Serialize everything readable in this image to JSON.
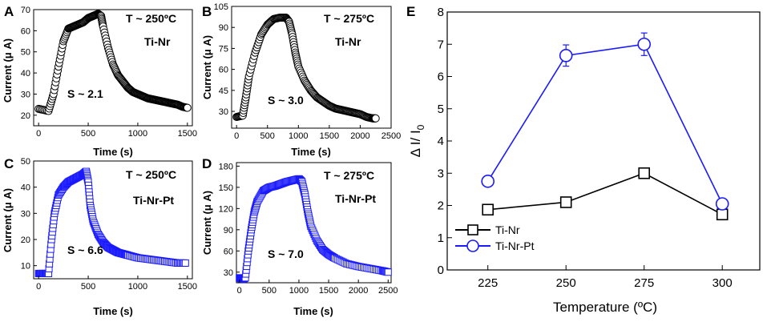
{
  "chart_data": [
    {
      "id": "A",
      "type": "scatter",
      "panel_label": "A",
      "xlabel": "Time (s)",
      "ylabel": "Current (μ A)",
      "xlim": [
        -50,
        1550
      ],
      "ylim": [
        15,
        70
      ],
      "xticks": [
        "0",
        "500",
        "1000",
        "1500"
      ],
      "xtick_values": [
        0,
        500,
        1000,
        1500
      ],
      "yticks": [
        "20",
        "30",
        "40",
        "50",
        "60",
        "70"
      ],
      "ytick_values": [
        20,
        30,
        40,
        50,
        60,
        70
      ],
      "annotations": {
        "temperature": "T ~ 250ºC",
        "sample": "Ti-Nr",
        "sensitivity": "S ~ 2.1"
      },
      "marker": "circle",
      "color": "#000000",
      "x": [
        0,
        100,
        150,
        200,
        250,
        300,
        350,
        400,
        450,
        500,
        550,
        600,
        630,
        650,
        700,
        750,
        800,
        850,
        900,
        950,
        1000,
        1050,
        1100,
        1150,
        1200,
        1250,
        1300,
        1350,
        1400,
        1450,
        1500
      ],
      "y": [
        23,
        22,
        30,
        43,
        55,
        61,
        62,
        63,
        64,
        66,
        67,
        68,
        67,
        62,
        52,
        44,
        39,
        36,
        33,
        31,
        30,
        29,
        28,
        27.5,
        27,
        26.5,
        26,
        25.5,
        25,
        24,
        23.5
      ]
    },
    {
      "id": "B",
      "type": "scatter",
      "panel_label": "B",
      "xlabel": "Time (s)",
      "ylabel": "Current (μ A)",
      "xlim": [
        -80,
        2500
      ],
      "ylim": [
        18,
        105
      ],
      "xticks": [
        "0",
        "500",
        "1000",
        "1500",
        "2000",
        "2500"
      ],
      "xtick_values": [
        0,
        500,
        1000,
        1500,
        2000,
        2500
      ],
      "yticks": [
        "30",
        "45",
        "60",
        "75",
        "90",
        "105"
      ],
      "ytick_values": [
        30,
        45,
        60,
        75,
        90,
        105
      ],
      "annotations": {
        "temperature": "T ~ 275ºC",
        "sample": "Ti-Nr",
        "sensitivity": "S ~ 3.0"
      },
      "marker": "circle",
      "color": "#000000",
      "x": [
        0,
        100,
        150,
        200,
        300,
        400,
        500,
        600,
        700,
        800,
        850,
        900,
        950,
        1000,
        1100,
        1200,
        1300,
        1400,
        1500,
        1600,
        1700,
        1800,
        1900,
        2000,
        2100,
        2200,
        2250
      ],
      "y": [
        26,
        27,
        40,
        55,
        72,
        85,
        92,
        96,
        97,
        97,
        94,
        85,
        72,
        62,
        52,
        45,
        40,
        37,
        34,
        32,
        31,
        30,
        29,
        28,
        26,
        25,
        25
      ]
    },
    {
      "id": "C",
      "type": "scatter",
      "panel_label": "C",
      "xlabel": "Time (s)",
      "ylabel": "Current (μ A)",
      "xlim": [
        -50,
        1550
      ],
      "ylim": [
        5,
        50
      ],
      "xticks": [
        "0",
        "500",
        "1000",
        "1500"
      ],
      "xtick_values": [
        0,
        500,
        1000,
        1500
      ],
      "yticks": [
        "10",
        "20",
        "30",
        "40",
        "50"
      ],
      "ytick_values": [
        10,
        20,
        30,
        40,
        50
      ],
      "annotations": {
        "temperature": "T ~ 250ºC",
        "sample": "Ti-Nr-Pt",
        "sensitivity": "S ~ 6.6"
      },
      "marker": "square",
      "color": "#1a1aff",
      "x": [
        0,
        50,
        100,
        130,
        160,
        200,
        250,
        300,
        350,
        400,
        450,
        480,
        500,
        520,
        550,
        600,
        650,
        700,
        750,
        800,
        850,
        900,
        1000,
        1100,
        1200,
        1300,
        1400,
        1480
      ],
      "y": [
        7,
        7,
        7,
        20,
        30,
        37,
        40,
        42,
        43,
        44,
        45,
        46,
        42,
        33,
        27,
        22,
        19,
        17,
        16,
        15,
        14.5,
        14,
        13,
        12.5,
        12,
        11.5,
        11,
        11
      ]
    },
    {
      "id": "D",
      "type": "scatter",
      "panel_label": "D",
      "xlabel": "Time (s)",
      "ylabel": "Current (μ A)",
      "xlim": [
        -50,
        2550
      ],
      "ylim": [
        15,
        185
      ],
      "xticks": [
        "0",
        "500",
        "1000",
        "1500",
        "2000",
        "2500"
      ],
      "xtick_values": [
        0,
        500,
        1000,
        1500,
        2000,
        2500
      ],
      "yticks": [
        "30",
        "60",
        "90",
        "120",
        "150",
        "180"
      ],
      "ytick_values": [
        30,
        60,
        90,
        120,
        150,
        180
      ],
      "annotations": {
        "temperature": "T ~ 275ºC",
        "sample": "Ti-Nr-Pt",
        "sensitivity": "S ~ 7.0"
      },
      "marker": "square",
      "color": "#1a1aff",
      "x": [
        0,
        50,
        100,
        150,
        200,
        250,
        300,
        400,
        500,
        600,
        700,
        800,
        900,
        1000,
        1050,
        1100,
        1150,
        1200,
        1300,
        1400,
        1500,
        1600,
        1800,
        2000,
        2200,
        2400,
        2500
      ],
      "y": [
        22,
        20,
        22,
        60,
        90,
        115,
        130,
        145,
        150,
        152,
        155,
        158,
        160,
        162,
        158,
        140,
        115,
        95,
        75,
        62,
        55,
        50,
        42,
        38,
        35,
        32,
        30
      ]
    },
    {
      "id": "E",
      "type": "line",
      "panel_label": "E",
      "xlabel": "Temperature (ºC)",
      "ylabel": "Δ I/ I0",
      "ylabel_main": "Δ I/ I",
      "ylabel_sub": "0",
      "xlim": [
        212,
        312
      ],
      "ylim": [
        0,
        8
      ],
      "xticks": [
        "225",
        "250",
        "275",
        "300"
      ],
      "xtick_values": [
        225,
        250,
        275,
        300
      ],
      "yticks": [
        "0",
        "1",
        "2",
        "3",
        "4",
        "5",
        "6",
        "7",
        "8"
      ],
      "ytick_values": [
        0,
        1,
        2,
        3,
        4,
        5,
        6,
        7,
        8
      ],
      "categories": [
        225,
        250,
        275,
        300
      ],
      "series": [
        {
          "name": "Ti-Nr",
          "marker": "square",
          "color": "#000000",
          "values": [
            1.87,
            2.1,
            3.0,
            1.72
          ],
          "errors": [
            0.08,
            0.1,
            0.08,
            0.1
          ]
        },
        {
          "name": "Ti-Nr-Pt",
          "marker": "circle",
          "color": "#1a1aff",
          "values": [
            2.75,
            6.65,
            7.0,
            2.05
          ],
          "errors": [
            0.1,
            0.33,
            0.35,
            0.1
          ]
        }
      ],
      "legend": {
        "position": "bottom-left",
        "entries": [
          "Ti-Nr",
          "Ti-Nr-Pt"
        ]
      }
    }
  ]
}
